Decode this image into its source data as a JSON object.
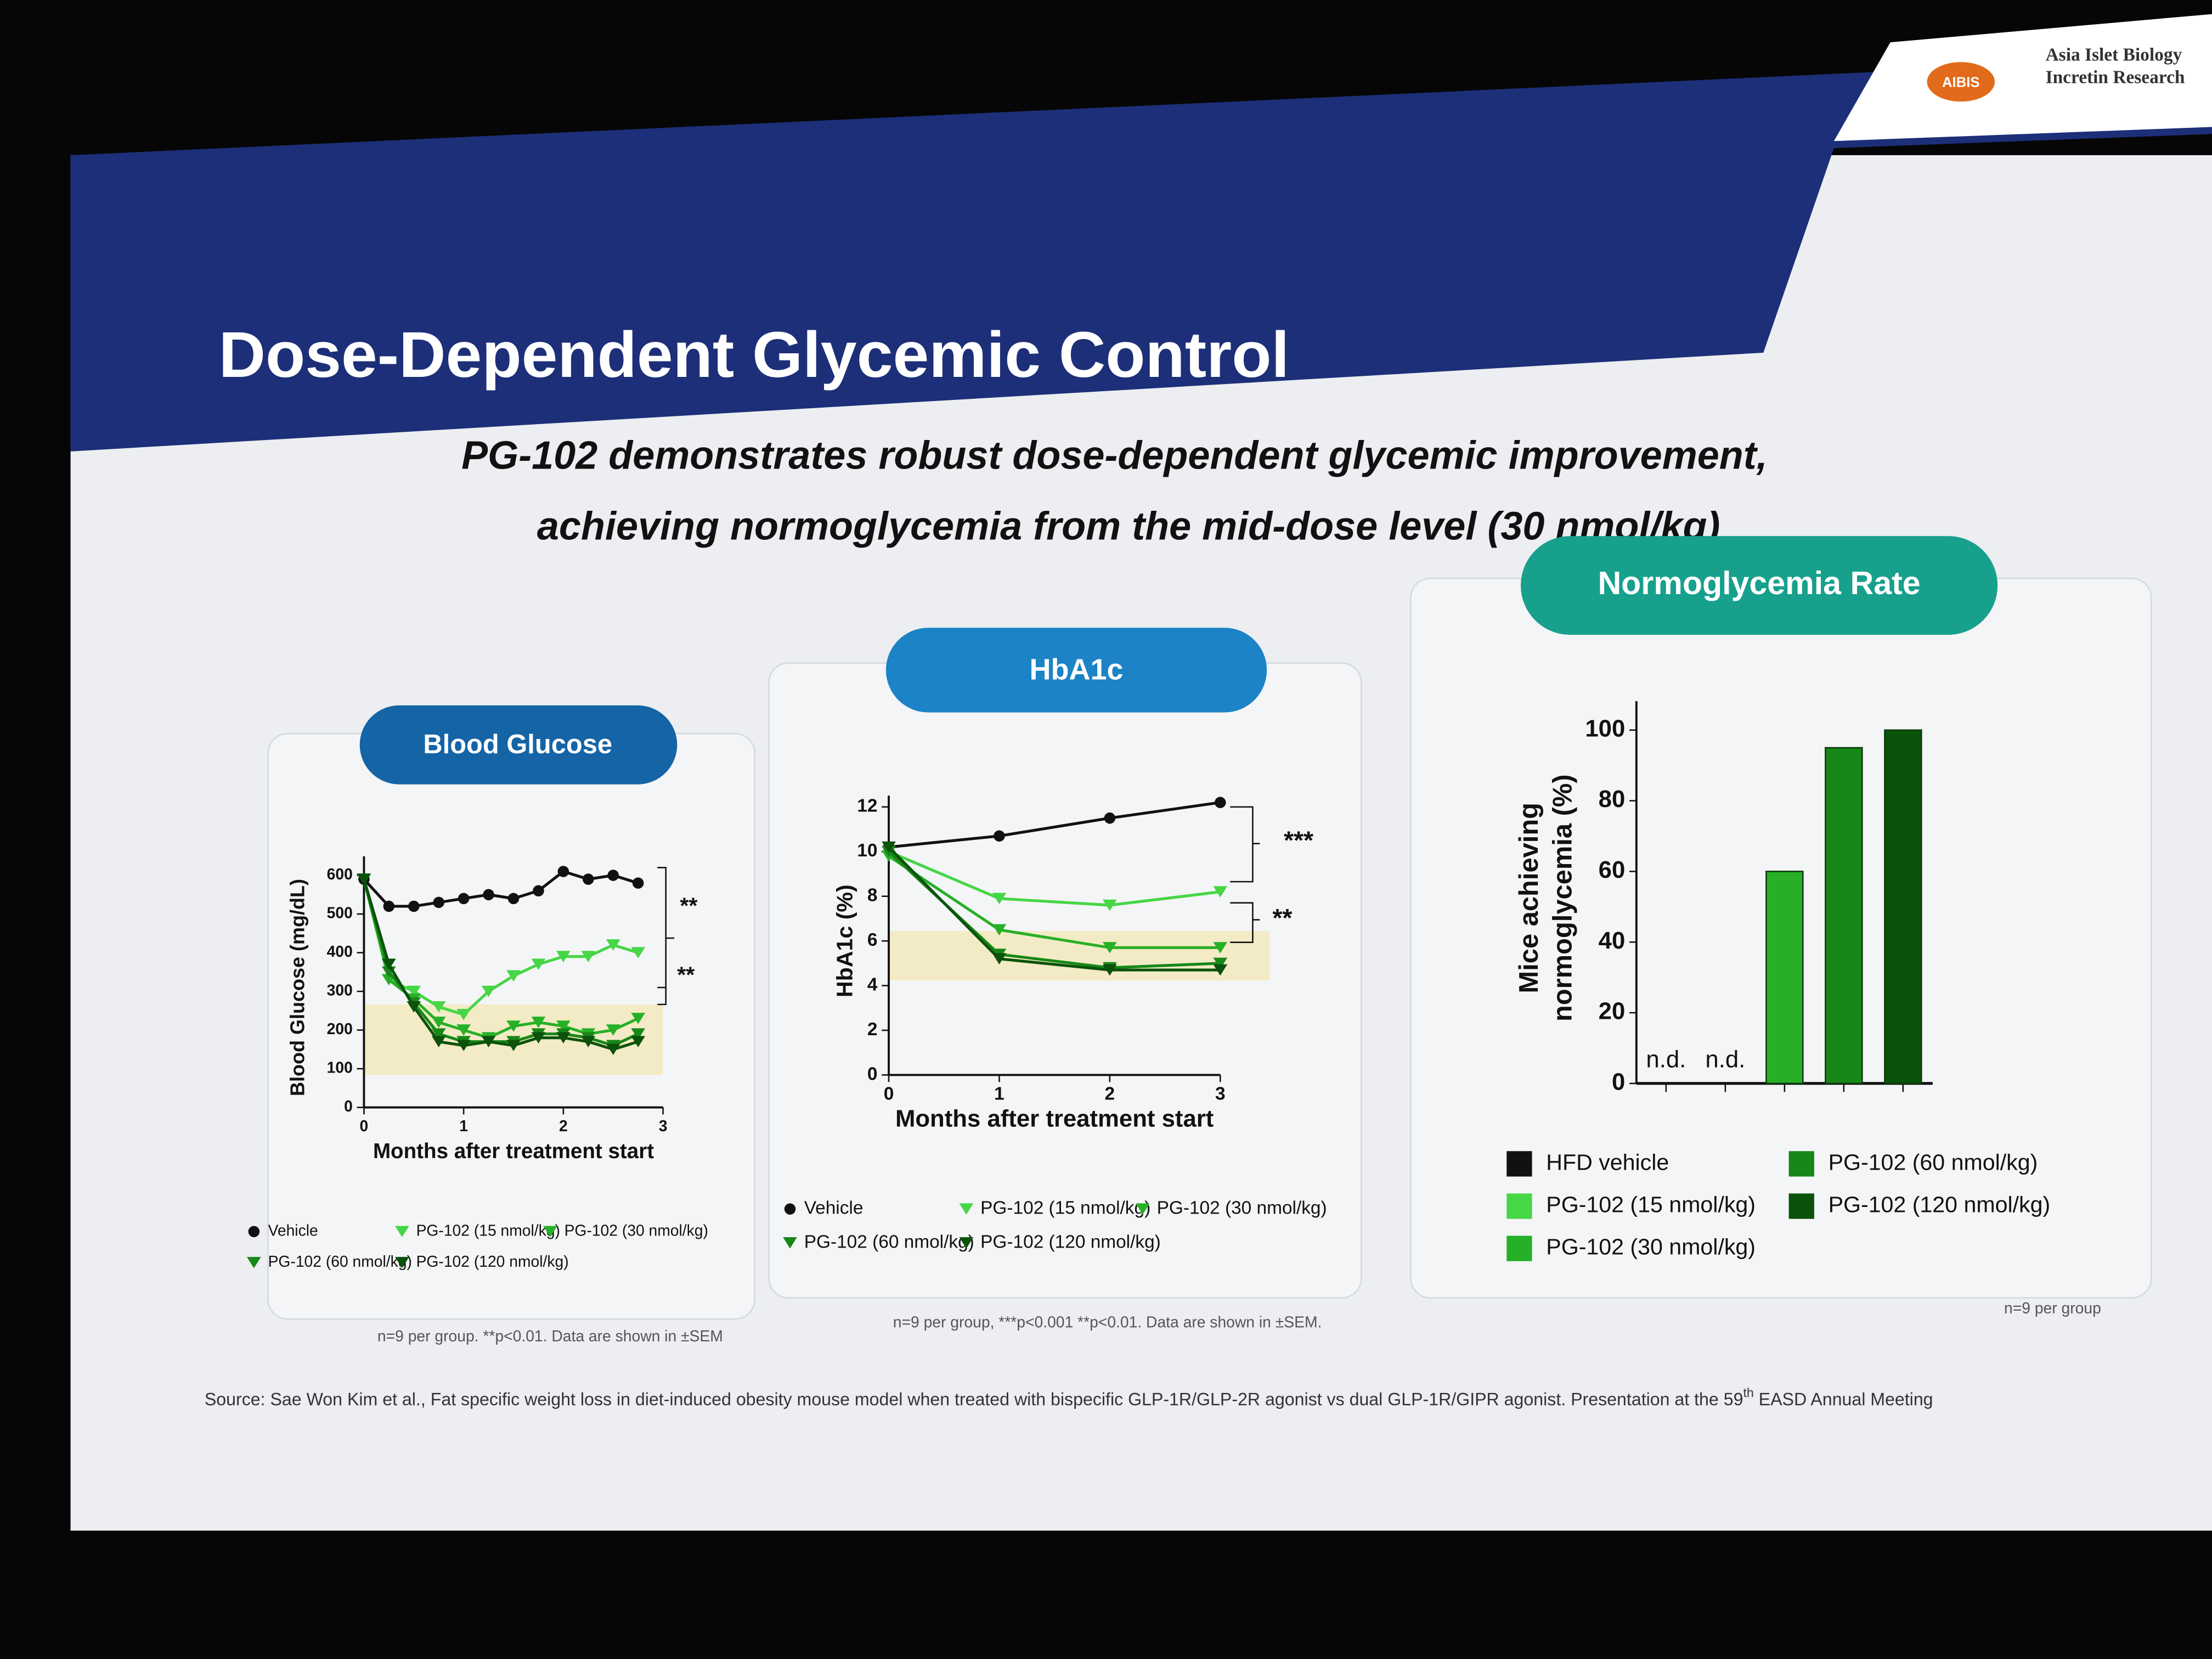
{
  "slide": {
    "title": "Dose-Dependent Glycemic Control",
    "subtitle": [
      "PG-102 demonstrates robust dose-dependent glycemic improvement,",
      "achieving normoglycemia from the mid-dose level (30 nmol/kg)"
    ],
    "logo": {
      "mark": "AIBIS",
      "lines": [
        "Asia Islet Biology",
        "Incretin Research"
      ]
    },
    "source": {
      "before": "Source: Sae Won Kim et al., Fat specific weight loss in diet-induced obesity mouse model when treated with bispecific GLP-1R/GLP-2R agonist vs dual GLP-1R/GIPR agonist. Presentation at the 59",
      "superscript": "th",
      "after": " EASD Annual Meeting"
    }
  },
  "chart_data": [
    {
      "type": "line",
      "title": "Blood Glucose",
      "xlabel": "Months after treatment start",
      "ylabel": "Blood Glucose (mg/dL)",
      "x": [
        0,
        0.25,
        0.5,
        0.75,
        1,
        1.25,
        1.5,
        1.75,
        2,
        2.25,
        2.5,
        2.75
      ],
      "xlim": [
        0,
        3
      ],
      "xticks": [
        0,
        1,
        2,
        3
      ],
      "ylim": [
        0,
        620
      ],
      "yticks": [
        0,
        100,
        200,
        300,
        400,
        500,
        600
      ],
      "series": [
        {
          "name": "Vehicle",
          "color": "#111111",
          "values": [
            590,
            520,
            520,
            530,
            540,
            550,
            540,
            560,
            610,
            590,
            600,
            580
          ]
        },
        {
          "name": "PG-102 (15 nmol/kg)",
          "color": "#46d646",
          "values": [
            590,
            330,
            300,
            260,
            240,
            300,
            340,
            370,
            390,
            390,
            420,
            400
          ]
        },
        {
          "name": "PG-102 (30 nmol/kg)",
          "color": "#27b027",
          "values": [
            590,
            330,
            280,
            220,
            200,
            180,
            210,
            220,
            210,
            190,
            200,
            230
          ]
        },
        {
          "name": "PG-102 (60 nmol/kg)",
          "color": "#178717",
          "values": [
            590,
            350,
            270,
            190,
            170,
            170,
            170,
            190,
            190,
            180,
            160,
            190
          ]
        },
        {
          "name": "PG-102 (120 nmol/kg)",
          "color": "#0b520b",
          "values": [
            590,
            370,
            260,
            170,
            160,
            170,
            160,
            180,
            180,
            170,
            150,
            170
          ]
        }
      ],
      "annotations": [
        "**",
        "**"
      ],
      "footnote": "n=9 per group. **p<0.01. Data are shown in ±SEM"
    },
    {
      "type": "line",
      "title": "HbA1c",
      "xlabel": "Months after treatment start",
      "ylabel": "HbA1c (%)",
      "x": [
        0,
        1,
        2,
        3
      ],
      "xlim": [
        0,
        3
      ],
      "xticks": [
        0,
        1,
        2,
        3
      ],
      "ylim": [
        0,
        12
      ],
      "yticks": [
        0,
        2,
        4,
        6,
        8,
        10,
        12
      ],
      "series": [
        {
          "name": "Vehicle",
          "color": "#111111",
          "values": [
            10.2,
            10.7,
            11.5,
            12.2
          ]
        },
        {
          "name": "PG-102 (15 nmol/kg)",
          "color": "#46d646",
          "values": [
            10,
            7.9,
            7.6,
            8.2
          ]
        },
        {
          "name": "PG-102 (30 nmol/kg)",
          "color": "#27b027",
          "values": [
            9.8,
            6.5,
            5.7,
            5.7
          ]
        },
        {
          "name": "PG-102 (60 nmol/kg)",
          "color": "#178717",
          "values": [
            10,
            5.4,
            4.8,
            5.0
          ]
        },
        {
          "name": "PG-102 (120 nmol/kg)",
          "color": "#0b520b",
          "values": [
            10.2,
            5.2,
            4.7,
            4.7
          ]
        }
      ],
      "annotations": [
        "***",
        "**"
      ],
      "footnote": "n=9 per group, ***p<0.001 **p<0.01. Data are shown in ±SEM."
    },
    {
      "type": "bar",
      "title": "Normoglycemia Rate",
      "ylabel": [
        "Mice achieving",
        "normoglycemia (%)"
      ],
      "categories": [
        null,
        null,
        null,
        null,
        null
      ],
      "values": [
        null,
        null,
        60,
        95,
        100
      ],
      "value_labels": [
        "n.d.",
        "n.d.",
        null,
        null,
        null
      ],
      "colors": [
        "#111111",
        "#46d646",
        "#27b027",
        "#178717",
        "#0b520b"
      ],
      "legend": [
        "HFD vehicle",
        "PG-102 (15 nmol/kg)",
        "PG-102 (30 nmol/kg)",
        "PG-102 (60 nmol/kg)",
        "PG-102 (120 nmol/kg)"
      ],
      "ylim": [
        0,
        105
      ],
      "yticks": [
        0,
        20,
        40,
        60,
        80,
        100
      ],
      "footnote": "n=9 per group"
    }
  ]
}
